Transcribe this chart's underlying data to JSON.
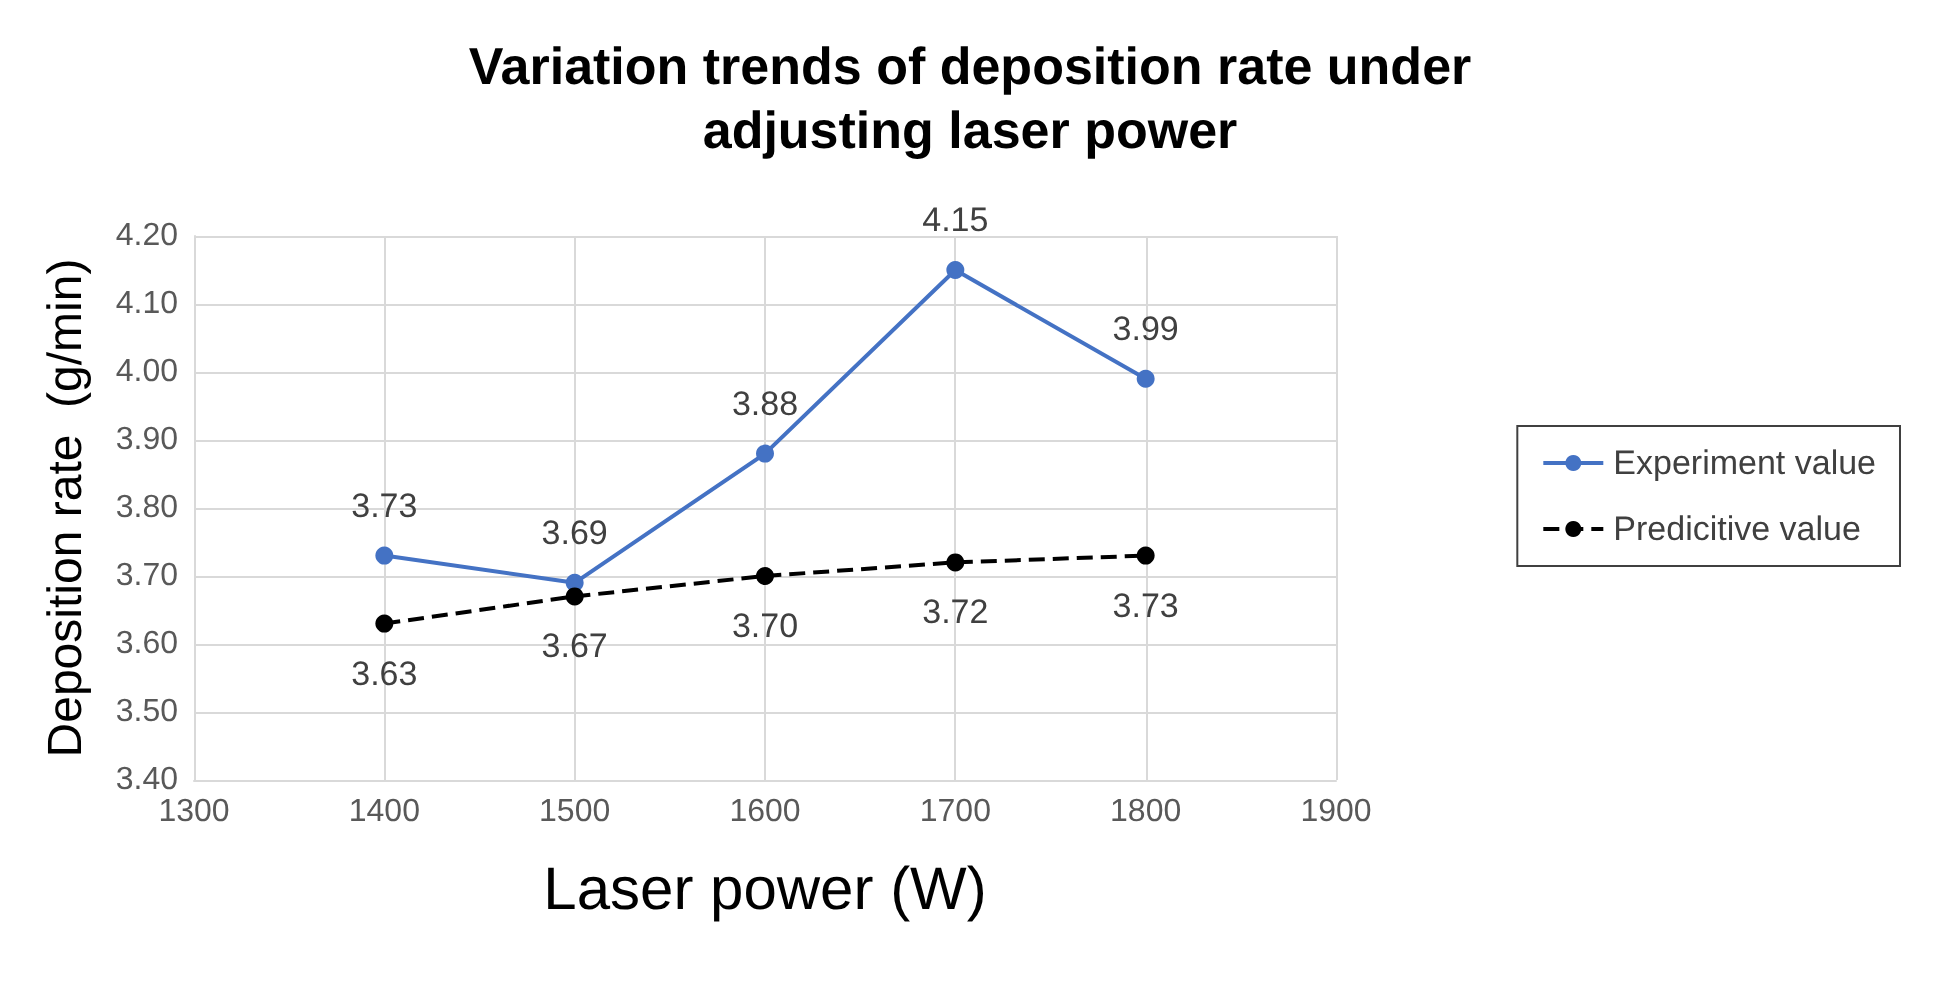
{
  "chart_data": {
    "type": "line",
    "title": "Variation trends of deposition rate under\nadjusting laser power",
    "xlabel": "Laser power (W)",
    "ylabel": "Deposition rate  (g/min)",
    "x": [
      1400,
      1500,
      1600,
      1700,
      1800
    ],
    "series": [
      {
        "name": "Experiment value",
        "color": "#4472c4",
        "line_style": "solid",
        "values": [
          3.73,
          3.69,
          3.88,
          4.15,
          3.99
        ],
        "value_labels": [
          "3.73",
          "3.69",
          "3.88",
          "4.15",
          "3.99"
        ]
      },
      {
        "name": "Predicitive value",
        "color": "#000000",
        "line_style": "dashed",
        "values": [
          3.63,
          3.67,
          3.7,
          3.72,
          3.73
        ],
        "value_labels": [
          "3.63",
          "3.67",
          "3.70",
          "3.72",
          "3.73"
        ]
      }
    ],
    "xlim": [
      1300,
      1900
    ],
    "xticks": [
      1300,
      1400,
      1500,
      1600,
      1700,
      1800,
      1900
    ],
    "ylim": [
      3.4,
      4.2
    ],
    "yticks": [
      {
        "value": 3.4,
        "label": "3.40"
      },
      {
        "value": 3.5,
        "label": "3.50"
      },
      {
        "value": 3.6,
        "label": "3.60"
      },
      {
        "value": 3.7,
        "label": "3.70"
      },
      {
        "value": 3.8,
        "label": "3.80"
      },
      {
        "value": 3.9,
        "label": "3.90"
      },
      {
        "value": 4.0,
        "label": "4.00"
      },
      {
        "value": 4.1,
        "label": "4.10"
      },
      {
        "value": 4.2,
        "label": "4.20"
      }
    ],
    "grid": true,
    "legend": "right",
    "marker": "circle"
  }
}
